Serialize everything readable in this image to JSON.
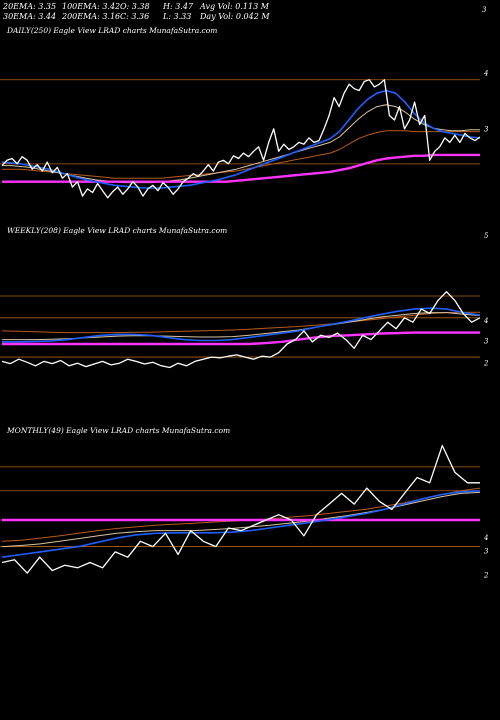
{
  "header": {
    "ema20": "20EMA: 3.35",
    "ema100": "100EMA: 3.42",
    "open": "O: 3.38",
    "high": "H: 3.47",
    "avg_vol": "Avg Vol: 0.113  M",
    "ema30": "30EMA: 3.44",
    "ema200": "200EMA: 3.16",
    "close": "C: 3.36",
    "low": "L: 3.33",
    "day_vol": "Day Vol: 0.042  M",
    "top_tick": "3"
  },
  "colors": {
    "background": "#000000",
    "price": "#ffffff",
    "ema_short": "#1f5fff",
    "ema_mid": "#d8c4a0",
    "ema_long": "#b85a1a",
    "ema_200": "#ff33ff",
    "level_line": "#b06010"
  },
  "chart_data": [
    {
      "type": "line",
      "panel": "daily",
      "title": "DAILY(250) Eagle  View  LRAD charts MunafaSutra.com",
      "ticks": [
        "4",
        "3"
      ],
      "ylim": [
        2.6,
        4.5
      ],
      "horizontal_levels": [
        4.0,
        3.06
      ],
      "series": [
        {
          "role": "price",
          "values": [
            3.04,
            3.1,
            3.12,
            3.06,
            3.14,
            3.1,
            3.0,
            3.05,
            2.98,
            3.08,
            2.96,
            3.02,
            2.9,
            2.95,
            2.8,
            2.86,
            2.7,
            2.78,
            2.74,
            2.84,
            2.76,
            2.68,
            2.75,
            2.8,
            2.72,
            2.78,
            2.86,
            2.8,
            2.7,
            2.78,
            2.82,
            2.76,
            2.85,
            2.8,
            2.72,
            2.78,
            2.86,
            2.9,
            2.95,
            2.92,
            2.98,
            3.05,
            2.98,
            3.08,
            3.1,
            3.06,
            3.15,
            3.12,
            3.18,
            3.14,
            3.2,
            3.25,
            3.1,
            3.3,
            3.45,
            3.2,
            3.28,
            3.22,
            3.25,
            3.3,
            3.28,
            3.35,
            3.3,
            3.32,
            3.45,
            3.6,
            3.8,
            3.7,
            3.85,
            3.95,
            3.9,
            3.88,
            3.98,
            4.0,
            3.92,
            3.95,
            4.0,
            3.6,
            3.55,
            3.7,
            3.45,
            3.55,
            3.75,
            3.5,
            3.6,
            3.1,
            3.2,
            3.25,
            3.35,
            3.3,
            3.38,
            3.3,
            3.4,
            3.35,
            3.32,
            3.36
          ]
        },
        {
          "role": "ema_short",
          "values": [
            3.08,
            3.07,
            3.06,
            3.04,
            3.02,
            3.0,
            2.97,
            2.94,
            2.91,
            2.88,
            2.86,
            2.84,
            2.82,
            2.81,
            2.8,
            2.79,
            2.79,
            2.79,
            2.8,
            2.81,
            2.82,
            2.84,
            2.86,
            2.88,
            2.91,
            2.94,
            2.98,
            3.02,
            3.06,
            3.1,
            3.14,
            3.18,
            3.22,
            3.26,
            3.3,
            3.34,
            3.42,
            3.55,
            3.68,
            3.78,
            3.85,
            3.88,
            3.85,
            3.75,
            3.62,
            3.52,
            3.46,
            3.42,
            3.4,
            3.38,
            3.36,
            3.35
          ]
        },
        {
          "role": "ema_mid",
          "values": [
            3.04,
            3.04,
            3.03,
            3.02,
            3.0,
            2.98,
            2.96,
            2.94,
            2.92,
            2.9,
            2.88,
            2.87,
            2.86,
            2.85,
            2.85,
            2.85,
            2.85,
            2.86,
            2.87,
            2.88,
            2.9,
            2.92,
            2.94,
            2.96,
            2.98,
            3.0,
            3.03,
            3.06,
            3.09,
            3.12,
            3.15,
            3.18,
            3.21,
            3.24,
            3.27,
            3.3,
            3.36,
            3.46,
            3.56,
            3.64,
            3.7,
            3.72,
            3.7,
            3.64,
            3.56,
            3.5,
            3.46,
            3.44,
            3.43,
            3.43,
            3.44,
            3.44
          ]
        },
        {
          "role": "ema_long",
          "values": [
            3.0,
            3.0,
            3.0,
            2.99,
            2.98,
            2.97,
            2.96,
            2.95,
            2.94,
            2.93,
            2.92,
            2.91,
            2.9,
            2.9,
            2.9,
            2.9,
            2.9,
            2.9,
            2.91,
            2.92,
            2.93,
            2.94,
            2.95,
            2.96,
            2.97,
            2.98,
            3.0,
            3.02,
            3.04,
            3.06,
            3.08,
            3.1,
            3.12,
            3.14,
            3.16,
            3.18,
            3.22,
            3.28,
            3.34,
            3.38,
            3.41,
            3.43,
            3.43,
            3.43,
            3.42,
            3.42,
            3.42,
            3.42,
            3.42,
            3.42,
            3.42,
            3.42
          ]
        },
        {
          "role": "ema_200",
          "values": [
            2.86,
            2.86,
            2.86,
            2.86,
            2.86,
            2.86,
            2.86,
            2.86,
            2.86,
            2.86,
            2.86,
            2.86,
            2.86,
            2.86,
            2.86,
            2.86,
            2.86,
            2.86,
            2.86,
            2.86,
            2.86,
            2.86,
            2.86,
            2.86,
            2.86,
            2.87,
            2.88,
            2.89,
            2.9,
            2.91,
            2.92,
            2.93,
            2.94,
            2.95,
            2.96,
            2.97,
            2.99,
            3.01,
            3.04,
            3.07,
            3.1,
            3.12,
            3.13,
            3.14,
            3.15,
            3.15,
            3.16,
            3.16,
            3.16,
            3.16,
            3.16,
            3.16
          ]
        }
      ]
    },
    {
      "type": "line",
      "panel": "weekly",
      "title": "WEEKLY(208) Eagle  View  LRAD charts MunafaSutra.com",
      "ticks": [
        "5",
        "4",
        "3",
        "2"
      ],
      "ylim": [
        1.5,
        5.4
      ],
      "horizontal_levels": [
        4.0,
        3.5,
        2.6
      ],
      "series": [
        {
          "role": "price",
          "values": [
            2.5,
            2.45,
            2.55,
            2.48,
            2.4,
            2.5,
            2.45,
            2.52,
            2.4,
            2.46,
            2.38,
            2.44,
            2.5,
            2.42,
            2.46,
            2.55,
            2.5,
            2.44,
            2.48,
            2.4,
            2.36,
            2.46,
            2.4,
            2.5,
            2.55,
            2.6,
            2.58,
            2.62,
            2.65,
            2.6,
            2.55,
            2.62,
            2.6,
            2.7,
            2.9,
            3.0,
            3.2,
            2.95,
            3.1,
            3.05,
            3.15,
            3.0,
            2.8,
            3.1,
            3.0,
            3.2,
            3.4,
            3.25,
            3.5,
            3.4,
            3.7,
            3.6,
            3.9,
            4.1,
            3.9,
            3.6,
            3.4,
            3.5
          ]
        },
        {
          "role": "ema_short",
          "values": [
            2.95,
            2.95,
            2.96,
            2.97,
            3.0,
            3.05,
            3.1,
            3.12,
            3.12,
            3.1,
            3.05,
            3.0,
            2.98,
            2.98,
            3.0,
            3.05,
            3.1,
            3.15,
            3.2,
            3.28,
            3.35,
            3.42,
            3.5,
            3.58,
            3.65,
            3.7,
            3.72,
            3.7,
            3.62,
            3.56
          ]
        },
        {
          "role": "ema_mid",
          "values": [
            3.0,
            3.0,
            3.0,
            3.01,
            3.02,
            3.04,
            3.06,
            3.08,
            3.09,
            3.09,
            3.08,
            3.07,
            3.06,
            3.06,
            3.07,
            3.1,
            3.14,
            3.18,
            3.22,
            3.28,
            3.34,
            3.4,
            3.46,
            3.52,
            3.56,
            3.6,
            3.62,
            3.62,
            3.58,
            3.55
          ]
        },
        {
          "role": "ema_long",
          "values": [
            3.2,
            3.19,
            3.18,
            3.17,
            3.16,
            3.16,
            3.16,
            3.16,
            3.17,
            3.17,
            3.18,
            3.19,
            3.2,
            3.21,
            3.22,
            3.24,
            3.26,
            3.28,
            3.3,
            3.33,
            3.36,
            3.4,
            3.44,
            3.48,
            3.52,
            3.56,
            3.6,
            3.62,
            3.63,
            3.63
          ]
        },
        {
          "role": "ema_200",
          "values": [
            2.9,
            2.9,
            2.9,
            2.9,
            2.9,
            2.9,
            2.9,
            2.9,
            2.9,
            2.9,
            2.9,
            2.9,
            2.9,
            2.9,
            2.9,
            2.9,
            2.92,
            2.95,
            3.0,
            3.05,
            3.08,
            3.1,
            3.12,
            3.14,
            3.15,
            3.16,
            3.16,
            3.16,
            3.16,
            3.16
          ]
        }
      ]
    },
    {
      "type": "line",
      "panel": "monthly",
      "title": "MONTHLY(49) Eagle  View  LRAD charts MunafaSutra.com",
      "ticks": [
        "4",
        "3",
        "2"
      ],
      "ylim": [
        1.4,
        4.6
      ],
      "horizontal_levels": [
        4.0,
        3.55,
        3.0,
        2.5
      ],
      "series": [
        {
          "role": "price",
          "values": [
            2.2,
            2.25,
            2.0,
            2.3,
            2.05,
            2.15,
            2.1,
            2.2,
            2.1,
            2.4,
            2.3,
            2.6,
            2.5,
            2.75,
            2.35,
            2.8,
            2.6,
            2.5,
            2.85,
            2.8,
            2.9,
            3.0,
            3.1,
            3.0,
            2.7,
            3.1,
            3.3,
            3.5,
            3.3,
            3.6,
            3.35,
            3.2,
            3.5,
            3.8,
            3.7,
            4.4,
            3.9,
            3.7,
            3.7
          ]
        },
        {
          "role": "ema_short",
          "values": [
            2.3,
            2.35,
            2.4,
            2.45,
            2.5,
            2.58,
            2.66,
            2.72,
            2.75,
            2.76,
            2.76,
            2.76,
            2.77,
            2.8,
            2.85,
            2.9,
            2.95,
            3.0,
            3.06,
            3.12,
            3.2,
            3.3,
            3.4,
            3.48,
            3.53,
            3.55
          ]
        },
        {
          "role": "ema_mid",
          "values": [
            2.5,
            2.52,
            2.55,
            2.6,
            2.65,
            2.7,
            2.75,
            2.78,
            2.8,
            2.8,
            2.8,
            2.82,
            2.84,
            2.87,
            2.9,
            2.94,
            2.98,
            3.03,
            3.08,
            3.14,
            3.2,
            3.28,
            3.36,
            3.44,
            3.5,
            3.52
          ]
        },
        {
          "role": "ema_long",
          "values": [
            2.6,
            2.62,
            2.66,
            2.7,
            2.75,
            2.8,
            2.84,
            2.87,
            2.9,
            2.92,
            2.94,
            2.96,
            2.98,
            3.0,
            3.02,
            3.05,
            3.08,
            3.12,
            3.16,
            3.2,
            3.26,
            3.32,
            3.4,
            3.48,
            3.55,
            3.6
          ]
        },
        {
          "role": "ema_200",
          "values": [
            3.0,
            3.0,
            3.0,
            3.0,
            3.0,
            3.0,
            3.0,
            3.0,
            3.0,
            3.0,
            3.0,
            3.0,
            3.0,
            3.0,
            3.0,
            3.0,
            3.0,
            3.0,
            3.0,
            3.0,
            3.0,
            3.0,
            3.0,
            3.0,
            3.0,
            3.0
          ]
        }
      ]
    }
  ]
}
